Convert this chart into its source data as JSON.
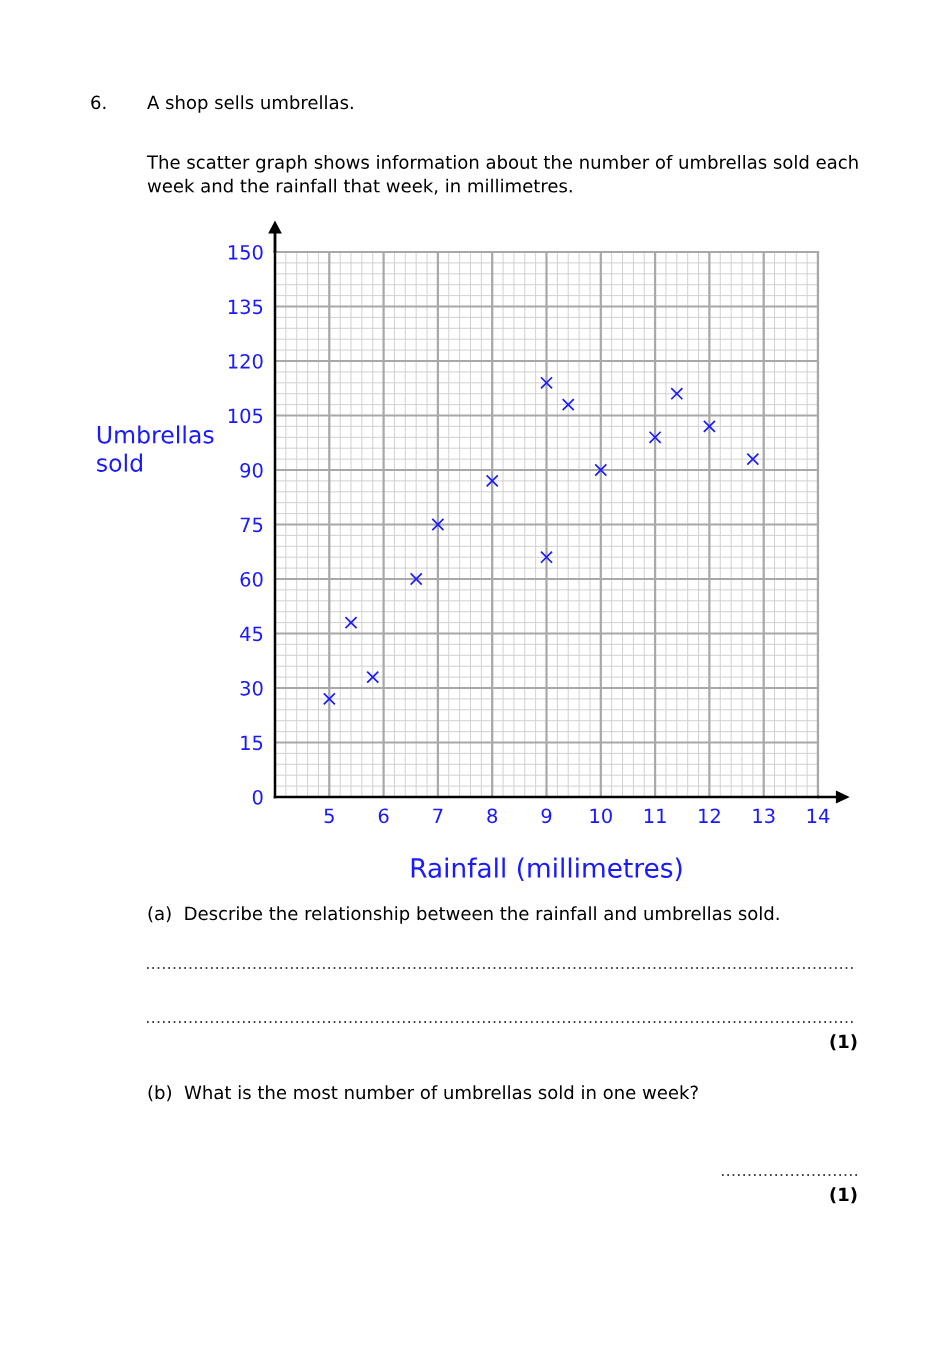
{
  "chart_data": {
    "type": "scatter",
    "xlabel": "Rainfall (millimetres)",
    "ylabel": "Umbrellas\nsold",
    "x": [
      5.0,
      5.4,
      5.8,
      6.6,
      7.0,
      8.0,
      9.0,
      9.0,
      9.4,
      10.0,
      11.0,
      11.4,
      12.0,
      12.8
    ],
    "series": [
      {
        "color": "#1a1aff",
        "values": [
          27,
          48,
          33,
          60,
          75,
          87,
          66,
          114,
          108,
          90,
          99,
          111,
          102,
          93
        ]
      }
    ],
    "marker": "cross",
    "grid": true,
    "xlim": [
      4,
      14
    ],
    "xticks": [
      5,
      6,
      7,
      8,
      9,
      10,
      11,
      12,
      13,
      14
    ],
    "ylim": [
      0,
      150
    ],
    "yticks": [
      0,
      15,
      30,
      45,
      60,
      75,
      90,
      105,
      120,
      135,
      150
    ],
    "annotations": [
      "6.",
      "A shop sells umbrellas.",
      "The scatter graph shows information about the number of umbrellas sold each\nweek and the rainfall that week, in millimetres.",
      "(a)  Describe the relationship between the rainfall and umbrellas sold.",
      "(1)",
      "(b)  What is the most number of umbrellas sold in one week?",
      "(1)"
    ]
  }
}
